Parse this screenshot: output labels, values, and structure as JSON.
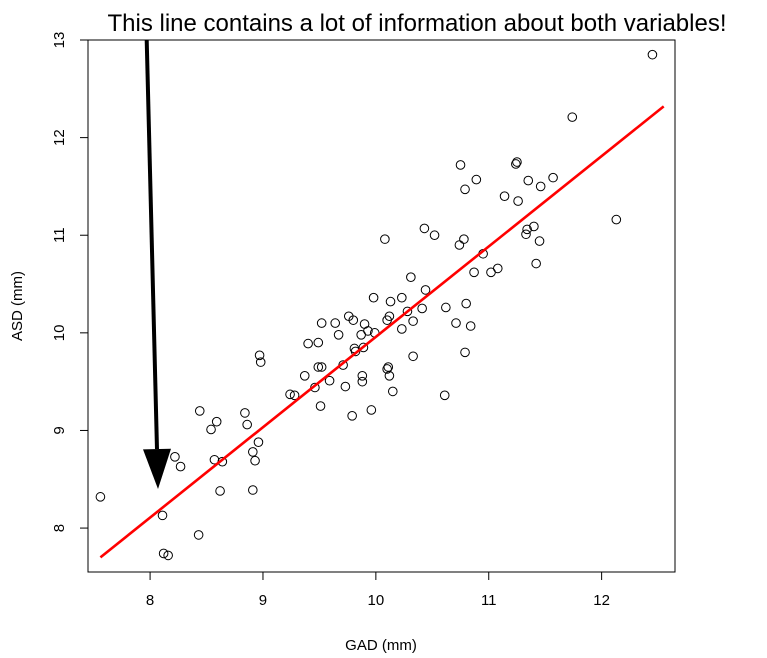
{
  "chart_data": {
    "type": "scatter",
    "title": "This line contains a lot of information about both variables!",
    "xlabel": "GAD (mm)",
    "ylabel": "ASD (mm)",
    "xlim": [
      7.45,
      12.65
    ],
    "ylim": [
      7.55,
      13.0
    ],
    "x_ticks": [
      "8",
      "9",
      "10",
      "11",
      "12"
    ],
    "y_ticks": [
      "8",
      "9",
      "10",
      "11",
      "12",
      "13"
    ],
    "grid": false,
    "point_color": "#000000",
    "line_color": "#ff0000",
    "arrow_color": "#000000",
    "regression_line": {
      "x": [
        7.56,
        12.55
      ],
      "y": [
        7.7,
        12.32
      ]
    },
    "arrow": {
      "from": [
        7.97,
        13.0
      ],
      "to": [
        8.07,
        8.4
      ]
    },
    "points": [
      [
        7.56,
        8.32
      ],
      [
        8.11,
        8.13
      ],
      [
        8.12,
        7.74
      ],
      [
        8.16,
        7.72
      ],
      [
        8.22,
        8.73
      ],
      [
        8.27,
        8.63
      ],
      [
        8.43,
        7.93
      ],
      [
        8.44,
        9.2
      ],
      [
        8.54,
        9.01
      ],
      [
        8.57,
        8.7
      ],
      [
        8.59,
        9.09
      ],
      [
        8.62,
        8.38
      ],
      [
        8.64,
        8.68
      ],
      [
        8.84,
        9.18
      ],
      [
        8.86,
        9.06
      ],
      [
        8.91,
        8.78
      ],
      [
        8.91,
        8.39
      ],
      [
        8.93,
        8.69
      ],
      [
        8.96,
        8.88
      ],
      [
        8.97,
        9.77
      ],
      [
        8.98,
        9.7
      ],
      [
        9.24,
        9.37
      ],
      [
        9.28,
        9.36
      ],
      [
        9.37,
        9.56
      ],
      [
        9.4,
        9.89
      ],
      [
        9.46,
        9.44
      ],
      [
        9.49,
        9.9
      ],
      [
        9.49,
        9.65
      ],
      [
        9.51,
        9.25
      ],
      [
        9.52,
        9.65
      ],
      [
        9.52,
        10.1
      ],
      [
        9.59,
        9.51
      ],
      [
        9.64,
        10.1
      ],
      [
        9.67,
        9.98
      ],
      [
        9.71,
        9.67
      ],
      [
        9.73,
        9.45
      ],
      [
        9.76,
        10.17
      ],
      [
        9.79,
        9.15
      ],
      [
        9.8,
        10.13
      ],
      [
        9.81,
        9.84
      ],
      [
        9.82,
        9.81
      ],
      [
        9.87,
        9.98
      ],
      [
        9.88,
        9.56
      ],
      [
        9.88,
        9.5
      ],
      [
        9.89,
        9.85
      ],
      [
        9.9,
        10.09
      ],
      [
        9.93,
        10.02
      ],
      [
        9.96,
        9.21
      ],
      [
        9.98,
        10.36
      ],
      [
        9.99,
        10.0
      ],
      [
        10.08,
        10.96
      ],
      [
        10.1,
        10.13
      ],
      [
        10.1,
        9.63
      ],
      [
        10.11,
        9.65
      ],
      [
        10.12,
        10.17
      ],
      [
        10.12,
        9.56
      ],
      [
        10.13,
        10.32
      ],
      [
        10.15,
        9.4
      ],
      [
        10.23,
        10.04
      ],
      [
        10.23,
        10.36
      ],
      [
        10.28,
        10.22
      ],
      [
        10.31,
        10.57
      ],
      [
        10.33,
        9.76
      ],
      [
        10.33,
        10.12
      ],
      [
        10.41,
        10.25
      ],
      [
        10.43,
        11.07
      ],
      [
        10.44,
        10.44
      ],
      [
        10.52,
        11.0
      ],
      [
        10.61,
        9.36
      ],
      [
        10.62,
        10.26
      ],
      [
        10.71,
        10.1
      ],
      [
        10.74,
        10.9
      ],
      [
        10.75,
        11.72
      ],
      [
        10.78,
        10.96
      ],
      [
        10.79,
        9.8
      ],
      [
        10.79,
        11.47
      ],
      [
        10.8,
        10.3
      ],
      [
        10.84,
        10.07
      ],
      [
        10.87,
        10.62
      ],
      [
        10.89,
        11.57
      ],
      [
        10.95,
        10.81
      ],
      [
        11.02,
        10.62
      ],
      [
        11.08,
        10.66
      ],
      [
        11.14,
        11.4
      ],
      [
        11.24,
        11.73
      ],
      [
        11.25,
        11.75
      ],
      [
        11.26,
        11.35
      ],
      [
        11.33,
        11.01
      ],
      [
        11.34,
        11.06
      ],
      [
        11.35,
        11.56
      ],
      [
        11.4,
        11.09
      ],
      [
        11.42,
        10.71
      ],
      [
        11.45,
        10.94
      ],
      [
        11.46,
        11.5
      ],
      [
        11.57,
        11.59
      ],
      [
        11.74,
        12.21
      ],
      [
        12.13,
        11.16
      ],
      [
        12.45,
        12.85
      ]
    ]
  }
}
